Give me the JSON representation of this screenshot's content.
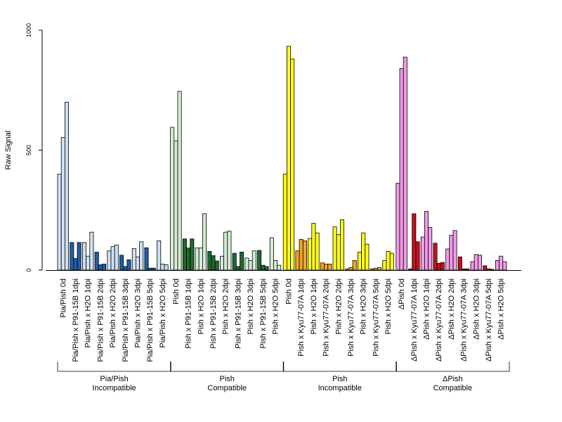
{
  "chart_data": {
    "type": "bar",
    "ylabel": "Raw Signal",
    "ylim": [
      0,
      1000
    ],
    "yticks": [
      "0",
      "500",
      "1000"
    ],
    "grid": false,
    "legend": "none",
    "groups": [
      {
        "name_line1": "Pia/Pish",
        "name_line2": "Incompatible",
        "categories": [
          {
            "label": "Pia/Pish 0d",
            "values": [
              400,
              553,
              700
            ],
            "color": "#cfe0f1"
          },
          {
            "label": "Pia/Pish x P91-15B 1dpi",
            "values": [
              115,
              48,
              115
            ],
            "color": "#1f5ea8"
          },
          {
            "label": "Pia/Pish x H2O 1dpi",
            "values": [
              115,
              58,
              158
            ],
            "color": "#cfe0f1"
          },
          {
            "label": "Pia/Pish x P91-15B 2dpi",
            "values": [
              75,
              22,
              25
            ],
            "color": "#1f5ea8"
          },
          {
            "label": "Pia/Pish x H2O 2dpi",
            "values": [
              80,
              98,
              105
            ],
            "color": "#cfe0f1"
          },
          {
            "label": "Pia/Pish x P91-15B 3dpi",
            "values": [
              62,
              15,
              43
            ],
            "color": "#1f5ea8"
          },
          {
            "label": "Pia/Pish x H2O 3dpi",
            "values": [
              90,
              55,
              118
            ],
            "color": "#cfe0f1"
          },
          {
            "label": "Pia/Pish x P91-15B 5dpi",
            "values": [
              93,
              8,
              8
            ],
            "color": "#1f5ea8"
          },
          {
            "label": "Pia/Pish x H2O 5dpi",
            "values": [
              122,
              25,
              22
            ],
            "color": "#cfe0f1"
          }
        ]
      },
      {
        "name_line1": "Pish",
        "name_line2": "Compatible",
        "categories": [
          {
            "label": "Pish 0d",
            "values": [
              595,
              538,
              745
            ],
            "color": "#d5ecd5"
          },
          {
            "label": "Pish x P91-15B 1dpi",
            "values": [
              130,
              92,
              130
            ],
            "color": "#1e6b2e"
          },
          {
            "label": "Pish x H2O 1dpi",
            "values": [
              92,
              92,
              235
            ],
            "color": "#d5ecd5"
          },
          {
            "label": "Pish x P91-15B 2dpi",
            "values": [
              78,
              60,
              38
            ],
            "color": "#1e6b2e"
          },
          {
            "label": "Pish x H2O 2dpi",
            "values": [
              58,
              158,
              162
            ],
            "color": "#d5ecd5"
          },
          {
            "label": "Pish x P91-15B 3dpi",
            "values": [
              70,
              15,
              75
            ],
            "color": "#1e6b2e"
          },
          {
            "label": "Pish x H2O 3dpi",
            "values": [
              50,
              40,
              80
            ],
            "color": "#d5ecd5"
          },
          {
            "label": "Pish x P91-15B 5dpi",
            "values": [
              82,
              20,
              15
            ],
            "color": "#1e6b2e"
          },
          {
            "label": "Pish x H2O 5dpi",
            "values": [
              135,
              40,
              20
            ],
            "color": "#d5ecd5"
          }
        ]
      },
      {
        "name_line1": "Pish",
        "name_line2": "Incompatible",
        "categories": [
          {
            "label": "Pish 0d",
            "values": [
              400,
              933,
              880
            ],
            "color": "#ffff1a"
          },
          {
            "label": "Pish x Kyu77-07A 1dpi",
            "values": [
              80,
              128,
              122
            ],
            "color": "#f5a623"
          },
          {
            "label": "Pish x H2O 1dpi",
            "values": [
              132,
              195,
              155
            ],
            "color": "#ffff1a"
          },
          {
            "label": "Pish x Kyu77-07A 2dpi",
            "values": [
              30,
              25,
              25
            ],
            "color": "#f5a623"
          },
          {
            "label": "Pish x H2O 2dpi",
            "values": [
              180,
              148,
              210
            ],
            "color": "#ffff1a"
          },
          {
            "label": "Pish x Kyu77-07A 3dpi",
            "values": [
              5,
              10,
              40
            ],
            "color": "#f5a623"
          },
          {
            "label": "Pish x H2O 3dpi",
            "values": [
              75,
              155,
              108
            ],
            "color": "#ffff1a"
          },
          {
            "label": "Pish x Kyu77-07A 5dpi",
            "values": [
              5,
              8,
              10
            ],
            "color": "#f5a623"
          },
          {
            "label": "Pish x H2O 5dpi",
            "values": [
              40,
              78,
              70
            ],
            "color": "#ffff1a"
          }
        ]
      },
      {
        "name_line1": "ΔPish",
        "name_line2": "Compatible",
        "categories": [
          {
            "label": "ΔPish 0d",
            "values": [
              362,
              840,
              888
            ],
            "color": "#f29ae8"
          },
          {
            "label": "ΔPish x Kyu77-07A 1dpi",
            "values": [
              5,
              235,
              118
            ],
            "color": "#c8101e"
          },
          {
            "label": "ΔPish x H2O 1dpi",
            "values": [
              138,
              245,
              178
            ],
            "color": "#f29ae8"
          },
          {
            "label": "ΔPish x Kyu77-07A 2dpi",
            "values": [
              112,
              28,
              32
            ],
            "color": "#c8101e"
          },
          {
            "label": "ΔPish x H2O 2dpi",
            "values": [
              88,
              145,
              165
            ],
            "color": "#f29ae8"
          },
          {
            "label": "ΔPish x Kyu77-07A 3dpi",
            "values": [
              55,
              5,
              5
            ],
            "color": "#c8101e"
          },
          {
            "label": "ΔPish x H2O 3dpi",
            "values": [
              35,
              65,
              62
            ],
            "color": "#f29ae8"
          },
          {
            "label": "ΔPish x Kyu77-07A 5dpi",
            "values": [
              18,
              5,
              3
            ],
            "color": "#c8101e"
          },
          {
            "label": "ΔPish x H2O 5dpi",
            "values": [
              40,
              58,
              35
            ],
            "color": "#f29ae8"
          }
        ]
      }
    ]
  }
}
